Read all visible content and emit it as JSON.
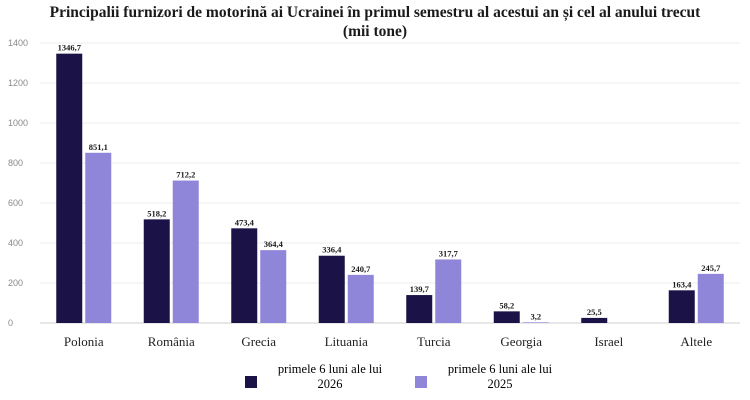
{
  "chart_data": {
    "type": "bar",
    "title": "Principalii furnizori de motorină ai Ucrainei în primul semestru al acestui an și cel al anului trecut",
    "subtitle": "(mii tone)",
    "categories": [
      "Polonia",
      "România",
      "Grecia",
      "Lituania",
      "Turcia",
      "Georgia",
      "Israel",
      "Altele"
    ],
    "series": [
      {
        "name": "primele 6 luni ale lui 2026",
        "color": "#1b1347",
        "values": [
          1346.7,
          518.2,
          473.4,
          336.4,
          139.7,
          58.2,
          25.5,
          163.4
        ],
        "labels": [
          "1346,7",
          "518,2",
          "473,4",
          "336,4",
          "139,7",
          "58,2",
          "25,5",
          "163,4"
        ]
      },
      {
        "name": "primele 6 luni ale lui 2025",
        "color": "#8f86d9",
        "values": [
          851.1,
          712.2,
          364.4,
          240.7,
          317.7,
          3.2,
          null,
          245.7
        ],
        "labels": [
          "851,1",
          "712,2",
          "364,4",
          "240,7",
          "317,7",
          "3,2",
          null,
          "245,7"
        ]
      }
    ],
    "ylim": [
      0,
      1400
    ],
    "yticks": [
      0,
      200,
      400,
      600,
      800,
      1000,
      1200,
      1400
    ],
    "grid": true,
    "legend_position": "bottom"
  }
}
